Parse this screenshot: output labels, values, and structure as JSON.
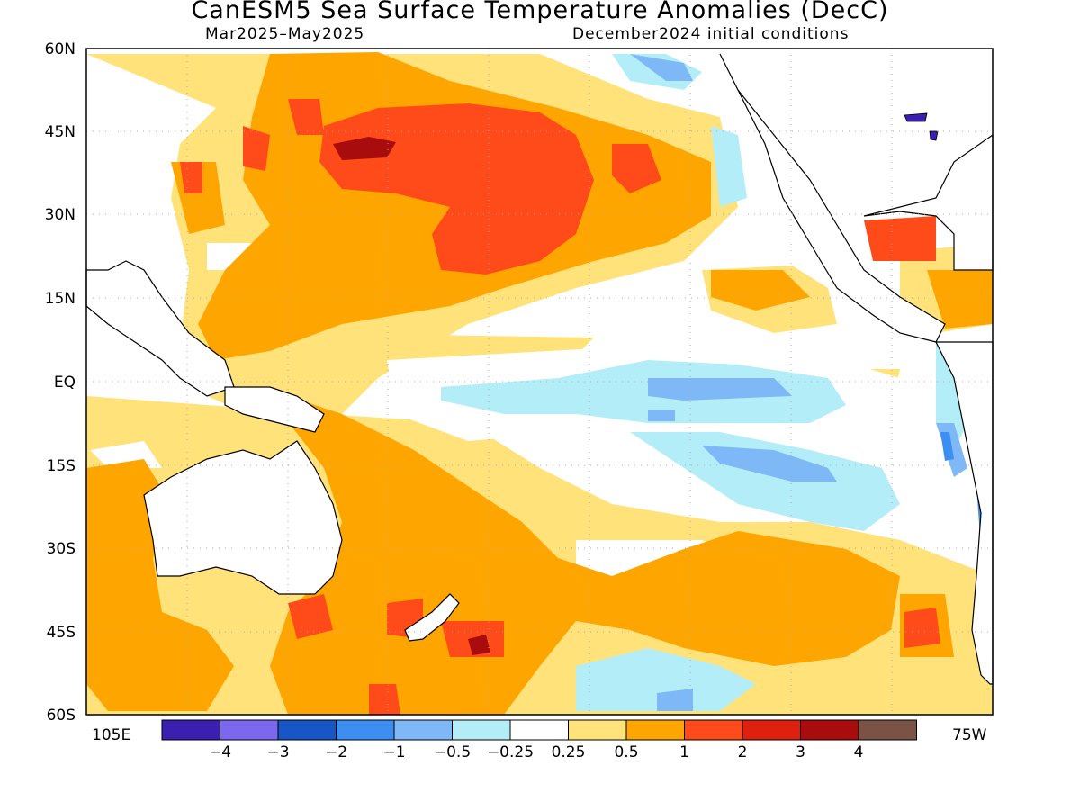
{
  "title": "CanESM5 Sea Surface Temperature Anomalies (DecC)",
  "subtitle_left": "Mar2025–May2025",
  "subtitle_right": "December2024 initial conditions",
  "lat_labels": [
    "60N",
    "45N",
    "30N",
    "15N",
    "EQ",
    "15S",
    "30S",
    "45S",
    "60S"
  ],
  "lon_left": "105E",
  "lon_right": "75W",
  "colorbar": {
    "colors": [
      "#3a1fb0",
      "#7b68ee",
      "#1856c8",
      "#3c8ff0",
      "#7fb8f6",
      "#b3eef8",
      "#ffffff",
      "#ffe27a",
      "#ffa500",
      "#ff4a1a",
      "#e0200e",
      "#a80c0c",
      "#7a5346"
    ],
    "labels": [
      "-4",
      "-3",
      "-2",
      "-1",
      "-0.5",
      "-0.25",
      "0.25",
      "0.5",
      "1",
      "2",
      "3",
      "4"
    ]
  },
  "colors": {
    "land": "#ffffff",
    "coast": "#000000",
    "grid": "#aaaaaa",
    "lakes": "#3a1fb0"
  }
}
